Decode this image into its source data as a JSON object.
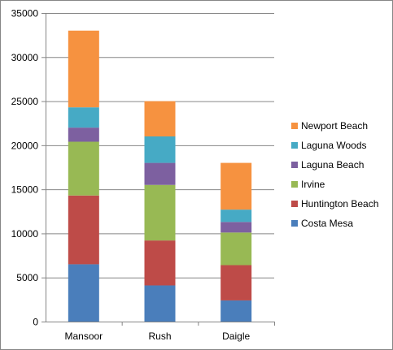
{
  "chart_data": {
    "type": "bar",
    "stacked": true,
    "title": "",
    "xlabel": "",
    "ylabel": "",
    "categories": [
      "Mansoor",
      "Rush",
      "Daigle"
    ],
    "ylim": [
      0,
      35000
    ],
    "ytick_step": 5000,
    "yticks": [
      "0",
      "5000",
      "10000",
      "15000",
      "20000",
      "25000",
      "30000",
      "35000"
    ],
    "grid": true,
    "legend_position": "right",
    "series": [
      {
        "name": "Costa Mesa",
        "color": "#4a7ebb",
        "values": [
          6500,
          4100,
          2400
        ]
      },
      {
        "name": "Huntington Beach",
        "color": "#be4b48",
        "values": [
          7800,
          5100,
          4000
        ]
      },
      {
        "name": "Irvine",
        "color": "#98b954",
        "values": [
          6100,
          6300,
          3700
        ]
      },
      {
        "name": "Laguna Beach",
        "color": "#7d60a0",
        "values": [
          1600,
          2500,
          1200
        ]
      },
      {
        "name": "Laguna Woods",
        "color": "#46aac5",
        "values": [
          2300,
          3000,
          1400
        ]
      },
      {
        "name": "Newport Beach",
        "color": "#f69240",
        "values": [
          8700,
          4000,
          5300
        ]
      }
    ]
  }
}
